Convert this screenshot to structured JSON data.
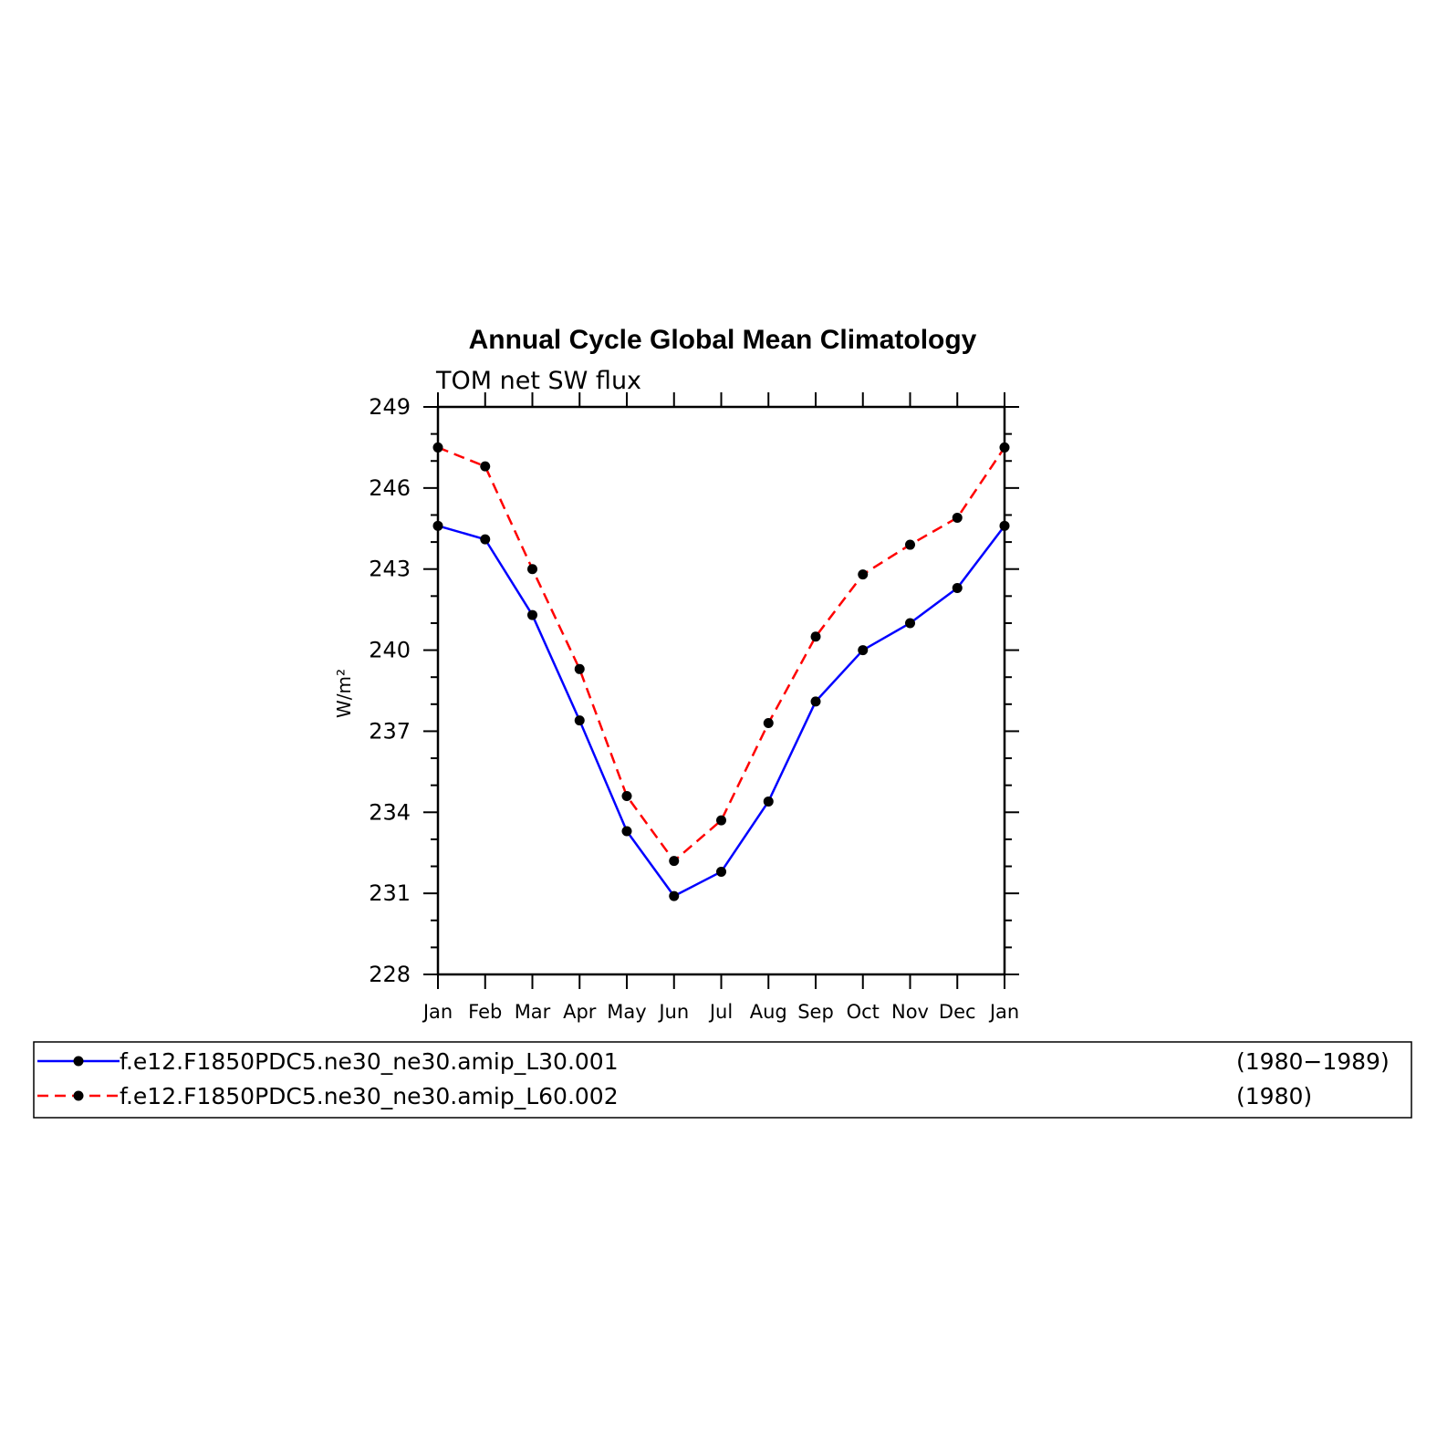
{
  "chart_data": {
    "type": "line",
    "title": "Annual Cycle Global Mean Climatology",
    "subtitle": "TOM net SW flux",
    "ylabel": "W/m²",
    "xlabel": "",
    "categories": [
      "Jan",
      "Feb",
      "Mar",
      "Apr",
      "May",
      "Jun",
      "Jul",
      "Aug",
      "Sep",
      "Oct",
      "Nov",
      "Dec",
      "Jan"
    ],
    "ylim": [
      228,
      249
    ],
    "yticks": [
      "249",
      "246",
      "243",
      "240",
      "237",
      "234",
      "231",
      "228"
    ],
    "grid": false,
    "legend_position": "bottom",
    "series": [
      {
        "name": "f.e12.F1850PDC5.ne30_ne30.amip_L30.001",
        "period": "(1980−1989)",
        "color": "#0000ff",
        "dash": "solid",
        "values": [
          244.6,
          244.1,
          241.3,
          237.4,
          233.3,
          230.9,
          231.8,
          234.4,
          238.1,
          240.0,
          241.0,
          242.3,
          244.6
        ]
      },
      {
        "name": "f.e12.F1850PDC5.ne30_ne30.amip_L60.002",
        "period": "(1980)",
        "color": "#ff0000",
        "dash": "dashed",
        "values": [
          247.5,
          246.8,
          243.0,
          239.3,
          234.6,
          232.2,
          233.7,
          237.3,
          240.5,
          242.8,
          243.9,
          244.9,
          247.5
        ]
      }
    ]
  }
}
